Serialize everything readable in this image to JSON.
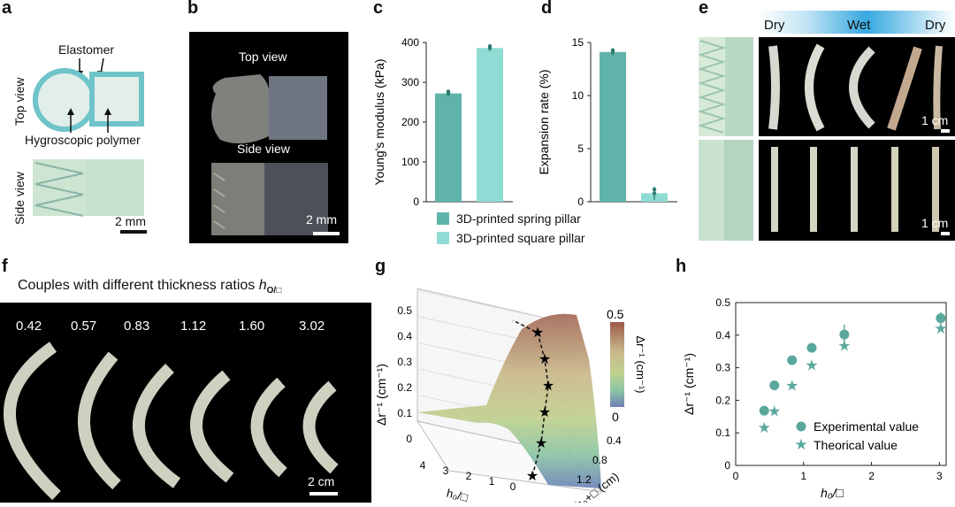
{
  "panels": {
    "a": {
      "label": "a",
      "elastomer": "Elastomer",
      "top_view": "Top view",
      "hygroscopic": "Hygroscopic polymer",
      "side_view": "Side view",
      "scale": "2 mm"
    },
    "b": {
      "label": "b",
      "top_view": "Top view",
      "side_view": "Side view",
      "scale": "2 mm"
    },
    "c": {
      "label": "c"
    },
    "d": {
      "label": "d"
    },
    "e": {
      "label": "e",
      "dry_left": "Dry",
      "wet": "Wet",
      "dry_right": "Dry",
      "scale_top": "1 cm",
      "scale_bottom": "1 cm"
    },
    "f": {
      "label": "f",
      "title": "Couples with different thickness ratios",
      "title_var": "h",
      "title_sub": "O/□",
      "ratios": [
        "0.42",
        "0.57",
        "0.83",
        "1.12",
        "1.60",
        "3.02"
      ],
      "scale": "2 cm"
    },
    "g": {
      "label": "g"
    },
    "h": {
      "label": "h"
    }
  },
  "legend_cd": {
    "spring": "3D-printed spring pillar",
    "square": "3D-printed square pillar"
  },
  "colors": {
    "spring": "#5fb3a9",
    "square": "#8fdcd4",
    "h_series": "#5aa89c"
  },
  "chart_data": [
    {
      "id": "c",
      "type": "bar",
      "categories": [
        "3D-printed spring pillar",
        "3D-printed square pillar"
      ],
      "values": [
        272,
        386
      ],
      "errors": [
        8,
        8
      ],
      "ylabel": "Young's modulus (kPa)",
      "ylim": [
        0,
        400
      ],
      "yticks": [
        "0",
        "100",
        "200",
        "300",
        "400"
      ]
    },
    {
      "id": "d",
      "type": "bar",
      "categories": [
        "3D-printed spring pillar",
        "3D-printed square pillar"
      ],
      "values": [
        14.1,
        0.8
      ],
      "errors": [
        0.3,
        0.6
      ],
      "ylabel": "Expansion rate (%)",
      "ylim": [
        0,
        15
      ],
      "yticks": [
        "0",
        "5",
        "10",
        "15"
      ]
    },
    {
      "id": "g",
      "type": "surface",
      "zlabel": "Δr⁻¹ (cm⁻¹)",
      "xlabel": "h₀/□",
      "ylabel": "h₀+□ (cm)",
      "zticks": [
        "0",
        "0.1",
        "0.2",
        "0.3",
        "0.4",
        "0.5"
      ],
      "xticks": [
        "4",
        "3",
        "2",
        "1",
        "0"
      ],
      "yticks": [
        "0.4",
        "0.8",
        "1.2"
      ],
      "colorbar": {
        "max": "0.5",
        "min": "0",
        "label": "Δr⁻¹ (cm⁻¹)"
      }
    },
    {
      "id": "h",
      "type": "scatter",
      "xlabel": "h₀/□",
      "ylabel": "Δr⁻¹ (cm⁻¹)",
      "xlim": [
        0,
        3.1
      ],
      "ylim": [
        0,
        0.5
      ],
      "xticks": [
        "0",
        "1",
        "2",
        "3"
      ],
      "yticks": [
        "0",
        "0.1",
        "0.2",
        "0.3",
        "0.4",
        "0.5"
      ],
      "series": [
        {
          "name": "Experimental value",
          "marker": "circle",
          "x": [
            0.42,
            0.57,
            0.83,
            1.12,
            1.6,
            3.02
          ],
          "y": [
            0.168,
            0.246,
            0.323,
            0.361,
            0.402,
            0.452
          ],
          "err": [
            0.008,
            0.008,
            0.008,
            0.012,
            0.03,
            0.018
          ]
        },
        {
          "name": "Theorical value",
          "marker": "star",
          "x": [
            0.42,
            0.57,
            0.83,
            1.12,
            1.6,
            3.02
          ],
          "y": [
            0.117,
            0.167,
            0.246,
            0.309,
            0.368,
            0.421
          ]
        }
      ]
    }
  ]
}
